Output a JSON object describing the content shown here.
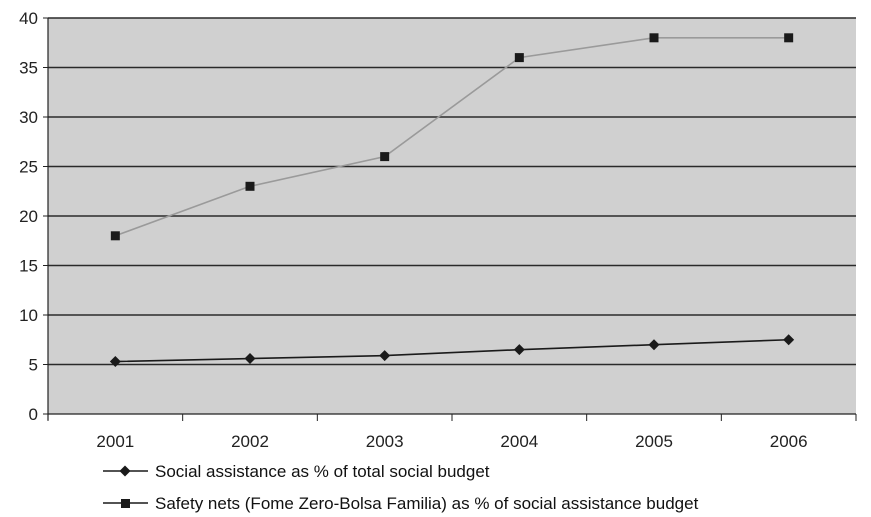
{
  "chart_data": {
    "type": "line",
    "categories": [
      "2001",
      "2002",
      "2003",
      "2004",
      "2005",
      "2006"
    ],
    "ylim": [
      0,
      40
    ],
    "yticks": [
      0,
      5,
      10,
      15,
      20,
      25,
      30,
      35,
      40
    ],
    "grid": true,
    "legend_position": "bottom",
    "colors": {
      "plot_background": "#d0d0d0",
      "gridline": "#2a2a2a",
      "series_social": "#1a1a1a",
      "series_safety": "#9a9a9a",
      "marker_safety": "#1a1a1a"
    },
    "series": [
      {
        "name": "Social assistance as % of total social budget",
        "marker": "diamond",
        "values": [
          5.3,
          5.6,
          5.9,
          6.5,
          7.0,
          7.5
        ]
      },
      {
        "name": "Safety nets (Fome Zero-Bolsa Familia) as % of social assistance budget",
        "marker": "square",
        "values": [
          18,
          23,
          26,
          36,
          38,
          38
        ]
      }
    ]
  }
}
